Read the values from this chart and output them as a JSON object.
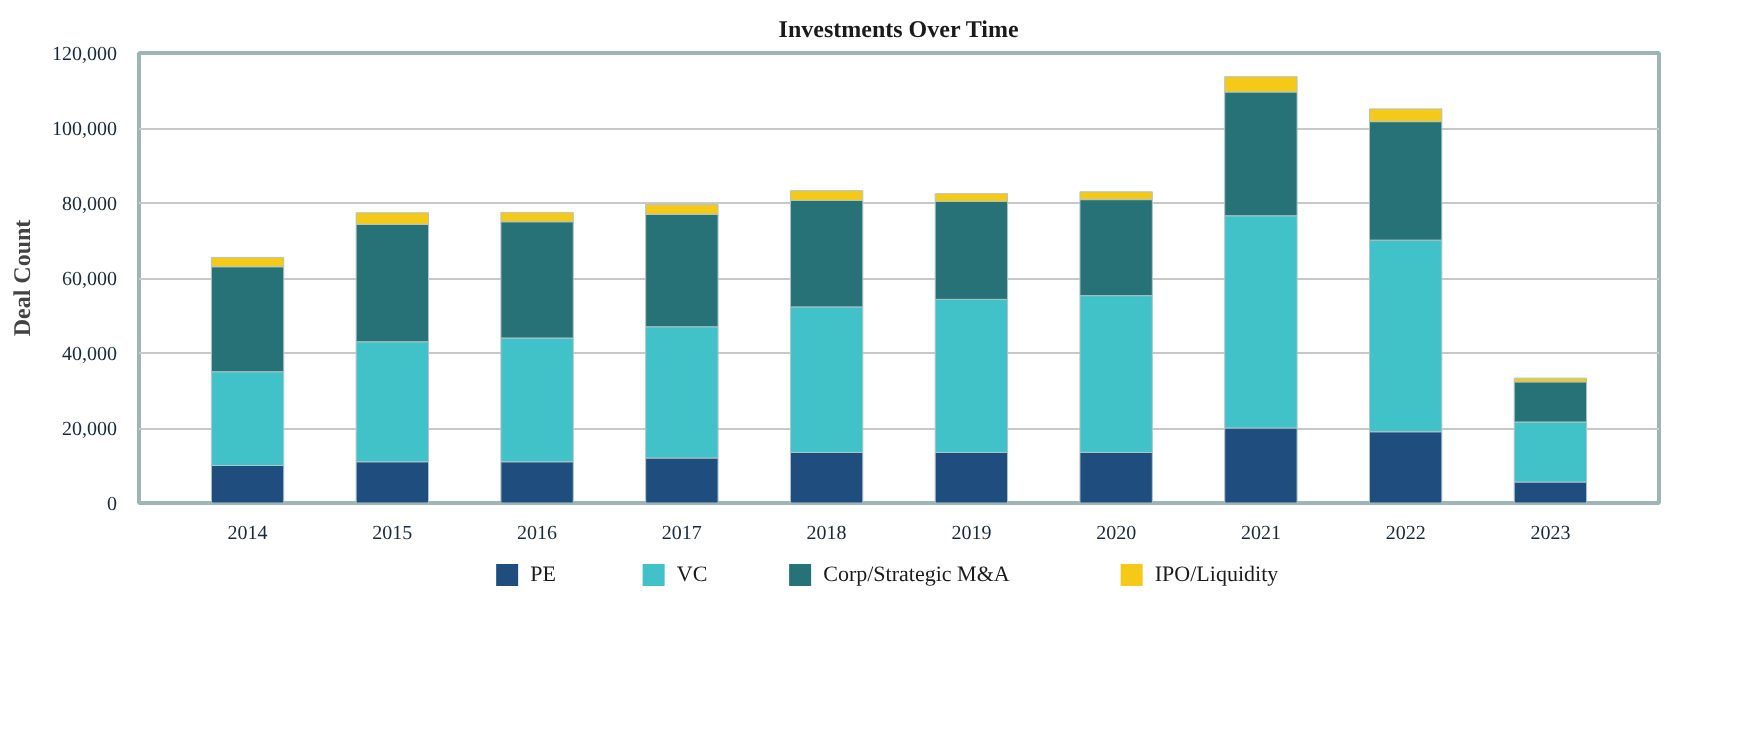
{
  "chart_data": {
    "type": "bar",
    "title": "Investments Over Time",
    "ylabel": "Deal Count",
    "stacked": true,
    "legend": "bottom",
    "grid": "y",
    "categories": [
      "2014",
      "2015",
      "2016",
      "2017",
      "2018",
      "2019",
      "2020",
      "2021",
      "2022",
      "2023"
    ],
    "ylim": [
      0,
      120000
    ],
    "yticks": [
      {
        "value": 0,
        "label": "0"
      },
      {
        "value": 20000,
        "label": "20,000"
      },
      {
        "value": 40000,
        "label": "40,000"
      },
      {
        "value": 60000,
        "label": "60,000"
      },
      {
        "value": 80000,
        "label": "80,000"
      },
      {
        "value": 100000,
        "label": "100,000"
      },
      {
        "value": 120000,
        "label": "120,000"
      }
    ],
    "series": [
      {
        "name": "PE",
        "color": "#1f4e7e",
        "values": [
          10000,
          11000,
          11000,
          12000,
          13500,
          13500,
          13500,
          20000,
          19000,
          5600
        ]
      },
      {
        "name": "VC",
        "color": "#40c2c8",
        "values": [
          25000,
          32000,
          33000,
          35000,
          38800,
          40800,
          41800,
          56600,
          51100,
          16000
        ]
      },
      {
        "name": "Corp/Strategic M&A",
        "color": "#267276",
        "values": [
          28000,
          31300,
          31000,
          30000,
          28400,
          26100,
          25600,
          33000,
          31600,
          10700
        ]
      },
      {
        "name": "IPO/Liquidity",
        "color": "#f5c917",
        "values": [
          2500,
          3100,
          2500,
          2600,
          2600,
          2100,
          2100,
          4100,
          3400,
          1000
        ]
      }
    ]
  }
}
